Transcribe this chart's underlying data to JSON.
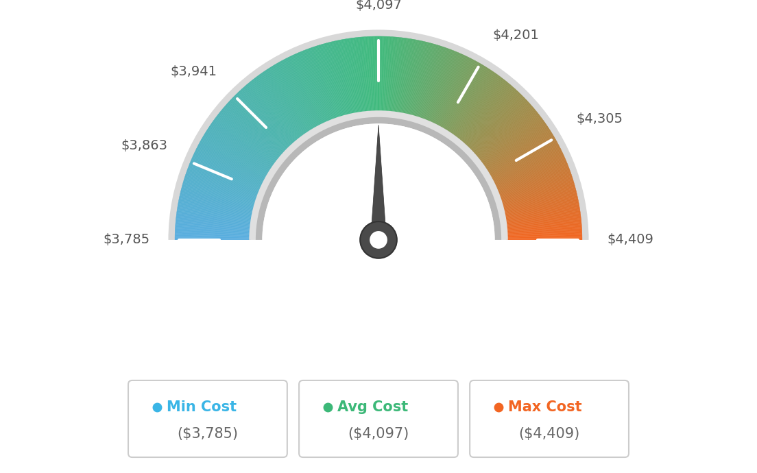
{
  "min_val": 3785,
  "max_val": 4409,
  "avg_val": 4097,
  "tick_labels": [
    "$3,785",
    "$3,863",
    "$3,941",
    "$4,097",
    "$4,201",
    "$4,305",
    "$4,409"
  ],
  "tick_values": [
    3785,
    3863,
    3941,
    4097,
    4201,
    4305,
    4409
  ],
  "legend": [
    {
      "label": "Min Cost",
      "value": "($3,785)",
      "color": "#3ab5e6"
    },
    {
      "label": "Avg Cost",
      "value": "($4,097)",
      "color": "#3cb878"
    },
    {
      "label": "Max Cost",
      "value": "($4,409)",
      "color": "#f26522"
    }
  ],
  "background_color": "#ffffff",
  "color_min": [
    0.35,
    0.68,
    0.88
  ],
  "color_avg": [
    0.25,
    0.73,
    0.49
  ],
  "color_max": [
    0.95,
    0.4,
    0.13
  ]
}
